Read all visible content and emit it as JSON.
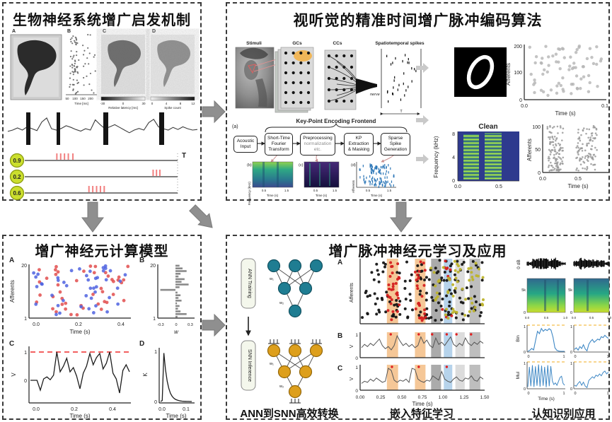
{
  "figure": {
    "bg": "#ffffff",
    "panel_border": "#3a3a3a",
    "big_arrow": "#8f8f8f",
    "small_arrow": "#c9c9c9"
  },
  "panels": {
    "bio": {
      "title": "生物神经系统增广启发机制",
      "fig_labels": {
        "a": "A",
        "b": "B",
        "c": "C",
        "d": "D"
      },
      "fig_b": {
        "xticks": [
          "50",
          "100",
          "150",
          "200"
        ],
        "xlabel": "Time [ms]"
      },
      "fig_c": {
        "ticks": [
          "-30",
          "0",
          "30"
        ],
        "label": "Relative latency [ms]"
      },
      "fig_d": {
        "ticks": [
          "0",
          "4",
          "8",
          "12"
        ],
        "label": "Spike count"
      },
      "ecg": {
        "color": "#3c3c3c",
        "values": [
          0.45,
          0.5,
          0.58,
          0.5,
          0.62,
          0.55,
          0.48,
          0.8,
          0.95,
          0.55,
          0.5,
          0.56,
          0.66,
          0.6,
          0.52,
          0.46,
          0.55,
          0.5,
          0.88,
          0.7,
          0.55,
          0.62,
          0.7,
          0.6,
          0.5,
          0.4,
          0.5,
          0.56,
          0.5,
          0.78,
          0.9,
          0.62,
          0.55,
          0.5,
          0.6,
          0.52,
          0.62,
          0.55,
          0.5,
          0.52
        ]
      },
      "circle_fill": "#cbdf2e",
      "circle_edge": "#8a9a10",
      "rate_rows": [
        {
          "value": "0.9",
          "ticks": {
            "color": "#f28080",
            "pos": [
              0.21,
              0.235,
              0.26,
              0.285,
              0.315
            ]
          }
        },
        {
          "value": "0.2",
          "ticks": {
            "color": "#f28080",
            "pos": [
              0.84,
              0.862,
              0.884
            ]
          }
        },
        {
          "value": "0.6",
          "ticks": {
            "color": "#f28080",
            "pos": [
              0.42,
              0.445,
              0.47,
              0.495,
              0.52
            ]
          }
        }
      ],
      "t_label": "T"
    },
    "encode": {
      "title": "视听觉的精准时间增广脉冲编码算法",
      "pipeline": {
        "stimuli": "Stimuli",
        "gcs": "GCs",
        "ccs": "CCs",
        "spatiotemporal": "Spatiotemporal spikes",
        "nerve": "nerve",
        "t_label": "T",
        "spike_points": {
          "n": 30,
          "seed": 17,
          "color": "#111111",
          "shape": "vbar"
        }
      },
      "frontend": {
        "a_label": "(a)",
        "title": "Key-Point Encoding Frontend",
        "box1": "Acoustic\nInput",
        "box2": "Short-Time\nFourier\nTransform",
        "box3_main": "Preprocessing",
        "box3_sub": "normalization\netc.",
        "box4": "KP\nExtraction\n& Masking",
        "box5": "Sparse\nSpike\nGeneration",
        "b_label": "(b)",
        "c_label": "(c)",
        "d_label": "(d)"
      }
    },
    "neuron": {
      "title": "增广神经元计算模型",
      "labels": {
        "a": "A",
        "b": "B",
        "c": "C",
        "d": "D"
      }
    },
    "learn": {
      "title": "增广脉冲神经元学习及应用",
      "ann_label": "ANN Training",
      "snn_label": "SNN Inference",
      "w1": "w₁",
      "w2": "w₂",
      "row_labels": {
        "a": "A",
        "b": "B",
        "c": "C"
      },
      "captions": {
        "convert": "ANN到SNN高效转换",
        "embed": "嵌入特征学习",
        "apply": "认知识别应用"
      }
    }
  },
  "chart_data": [
    {
      "id": "fish_spike_raster",
      "type": "scatter",
      "xlabel": "Time [ms]",
      "xticks": [
        "50",
        "100",
        "150",
        "200"
      ],
      "xlim": [
        0,
        250
      ],
      "seed": 11,
      "r": 1.1,
      "opacity": 0.9,
      "groups": [
        {
          "n": 55,
          "color": "#666666",
          "x0": 0.12,
          "x1": 0.42
        },
        {
          "n": 28,
          "color": "#666666",
          "x0": 0.3,
          "x1": 0.95
        }
      ]
    },
    {
      "id": "visual_spike_raster",
      "type": "scatter",
      "xlabel": "Time (s)",
      "ylabel": "Afferents",
      "xticks": [
        "0.0",
        "0.1"
      ],
      "yticks": [
        "0",
        "100",
        "200"
      ],
      "xlim": [
        0,
        0.1
      ],
      "ylim": [
        0,
        200
      ],
      "seed": 21,
      "r": 2.2,
      "opacity": 0.8,
      "groups": [
        {
          "n": 72,
          "color": "#b4b4b4"
        }
      ]
    },
    {
      "id": "clean_spectrogram",
      "type": "heatmap",
      "title": "Clean",
      "ylabel": "Frequency (kHz)",
      "yticks": [
        "0",
        "4",
        "8"
      ],
      "xticks": [
        "0.0",
        "0.5"
      ],
      "xlim": [
        0,
        0.75
      ],
      "ylim": [
        0,
        8
      ]
    },
    {
      "id": "clean_spike_raster",
      "type": "scatter",
      "xlabel": "Time (s)",
      "ylabel": "Afferents",
      "xticks": [
        "0.0",
        "0.5"
      ],
      "yticks": [
        "0",
        "50",
        "100"
      ],
      "ylim": [
        0,
        110
      ],
      "seed": 7,
      "r": 1.3,
      "opacity": 0.85,
      "groups": [
        {
          "n": 115,
          "color": "#9a9a9a",
          "x0": 0.05,
          "x1": 0.3
        },
        {
          "n": 105,
          "color": "#9a9a9a",
          "x0": 0.5,
          "x1": 0.82
        }
      ]
    },
    {
      "id": "stft_spectrogram",
      "type": "heatmap",
      "xlabel": "Time (s)",
      "xticks": [
        "0.5",
        "1.5"
      ],
      "ylabel": "Frequency (kHz)"
    },
    {
      "id": "preprocessed_spectrogram",
      "type": "heatmap",
      "xlabel": "Time (s)",
      "xticks": [
        "0.5",
        "1.5"
      ],
      "ylabel": "Frequency (kHz)"
    },
    {
      "id": "kp_sparse_spikes",
      "type": "scatter",
      "xlabel": "Time (s)",
      "ylabel": "Afferents",
      "xticks": [
        "0.5",
        "1.5"
      ],
      "seed": 13,
      "shape": "vbar",
      "opacity": 0.95,
      "groups": [
        {
          "n": 65,
          "color": "#2e78b8",
          "x0": 0.3,
          "x1": 0.8
        },
        {
          "n": 45,
          "color": "#2e78b8",
          "x0": 0.02,
          "x1": 0.98
        }
      ]
    },
    {
      "id": "augmented_neuron_raster",
      "type": "scatter",
      "xlabel": "Time (s)",
      "ylabel": "Afferents",
      "xticks": [
        "0.0",
        "0.2",
        "0.4"
      ],
      "yticks": [
        "1",
        "20"
      ],
      "xlim": [
        0,
        0.5
      ],
      "ylim": [
        1,
        20
      ],
      "seed": 5,
      "r": 2.4,
      "opacity": 0.85,
      "groups": [
        {
          "n": 45,
          "color": "#e24d4d"
        },
        {
          "n": 45,
          "color": "#4f63e0"
        }
      ]
    },
    {
      "id": "weights_histogram",
      "type": "bar",
      "orientation": "horizontal",
      "xlabel": "w",
      "xticks": [
        "-0.3",
        "0",
        "0.3"
      ],
      "yticks": [
        "1",
        "20"
      ],
      "xlim": [
        -0.35,
        0.35
      ],
      "color": "#8a8a8a",
      "values": [
        0.04,
        0.22,
        0.1,
        0.05,
        0.08,
        0.03,
        0.12,
        0.06,
        0.1,
        0.04,
        -0.3,
        0.08,
        0.26,
        0.12,
        0.18,
        0.06,
        0.1,
        0.22,
        0.14,
        0.08
      ]
    },
    {
      "id": "membrane_potential",
      "type": "line",
      "ylabel": "V",
      "yticks": [
        "0",
        "1"
      ],
      "xticks": [
        "0.0",
        "0.2",
        "0.4"
      ],
      "xlabel": "Time (s)",
      "threshold": 1,
      "threshold_color": "#f26060",
      "color": "#1c1c1c",
      "width": 1.3,
      "ylim": [
        -0.7,
        1.15
      ],
      "values": [
        0,
        0,
        0,
        -0.35,
        0.05,
        0.12,
        0.02,
        0.18,
        1,
        0.3,
        0.5,
        0.78,
        0.3,
        0.45,
        0.15,
        -0.3,
        0.25,
        0.5,
        0.95,
        0.55,
        0.8,
        0.95,
        0.4,
        0.6,
        1,
        0.25,
        0.05,
        -0.45,
        0.35,
        0.55,
        0.3
      ]
    },
    {
      "id": "spike_kernel",
      "type": "line",
      "ylabel": "K",
      "yticks": [
        "0",
        "1"
      ],
      "xticks": [
        "0.0",
        "0.1"
      ],
      "xlabel": "Time (s)",
      "color": "#1c1c1c",
      "width": 1.3,
      "ylim": [
        0,
        1.08
      ],
      "values": [
        0,
        0.02,
        1,
        0.66,
        0.42,
        0.27,
        0.17,
        0.11,
        0.07,
        0.045,
        0.03,
        0.02,
        0.012,
        0.008,
        0.005,
        0.003,
        0.002,
        0.001,
        0,
        0
      ]
    },
    {
      "id": "learning_raster",
      "type": "scatter",
      "ylabel": "Afferents",
      "xlim": [
        0,
        1.5
      ],
      "seed": 9,
      "r": 2,
      "opacity": 0.95,
      "bands": [
        {
          "f0": 0.215,
          "f1": 0.305,
          "color": "#f3bd85"
        },
        {
          "f0": 0.44,
          "f1": 0.525,
          "color": "#f3bd85"
        },
        {
          "f0": 0.57,
          "f1": 0.65,
          "color": "#9c9c9c"
        },
        {
          "f0": 0.672,
          "f1": 0.74,
          "color": "#a9cbe7"
        },
        {
          "f0": 0.765,
          "f1": 0.84,
          "color": "#d6d6d6"
        },
        {
          "f0": 0.878,
          "f1": 0.965,
          "color": "#b3b3b3"
        }
      ],
      "groups": [
        {
          "n": 150,
          "color": "#151515"
        },
        {
          "n": 30,
          "color": "#d42020",
          "x0": 0.21,
          "x1": 0.31
        },
        {
          "n": 26,
          "color": "#d42020",
          "x0": 0.43,
          "x1": 0.53
        },
        {
          "n": 10,
          "color": "#d42020",
          "x0": 0.66,
          "x1": 0.75
        },
        {
          "n": 55,
          "color": "#bdb32c",
          "x0": 0.55,
          "x1": 1
        }
      ]
    },
    {
      "id": "membrane_b",
      "type": "line",
      "ylabel": "V",
      "yticks": [
        "0",
        "1"
      ],
      "color": "#555555",
      "width": 1,
      "ylim": [
        0,
        1.05
      ],
      "spike_marks": [
        0.24,
        0.47,
        0.58,
        0.7,
        0.78,
        0.9
      ],
      "values": [
        0.4,
        0.55,
        0.45,
        0.6,
        0.5,
        0.65,
        0.8,
        0.5,
        0.35,
        0.45,
        0.3,
        0.5,
        0.95,
        0.7,
        0.5,
        0.6,
        0.45,
        0.55,
        0.4,
        0.5,
        0.9,
        0.6,
        0.75,
        0.5,
        0.4,
        0.85,
        0.55,
        0.65,
        0.5,
        0.7,
        0.9,
        0.55,
        0.45,
        0.6,
        0.5,
        0.85,
        0.6,
        0.5,
        0.65,
        0.55,
        0.7,
        0.6
      ]
    },
    {
      "id": "membrane_c",
      "type": "line",
      "ylabel": "V",
      "yticks": [
        "0",
        "1"
      ],
      "xticks": [
        "0.00",
        "0.25",
        "0.50",
        "0.75",
        "1.00",
        "1.25",
        "1.50"
      ],
      "xlabel": "Time (s)",
      "color": "#555555",
      "width": 1,
      "ylim": [
        0,
        1.05
      ],
      "spike_marks": [
        0.25,
        0.47,
        0.7
      ],
      "values": [
        0.25,
        0.35,
        0.3,
        0.45,
        0.35,
        0.5,
        0.4,
        0.3,
        0.35,
        0.95,
        0.85,
        0.4,
        0.3,
        0.4,
        0.35,
        0.45,
        0.3,
        0.95,
        0.9,
        0.45,
        0.35,
        0.3,
        0.4,
        0.35,
        0.6,
        0.5,
        0.4,
        0.8,
        0.45,
        0.35,
        0.3,
        0.45,
        0.55,
        0.4,
        0.35,
        0.5,
        0.45,
        0.6,
        0.4,
        0.35,
        0.55,
        0.45
      ]
    },
    {
      "id": "waveform_left",
      "type": "waveform",
      "ylabel": "0 dB",
      "seed": 31,
      "n": 48,
      "color": "#0a0a0a",
      "env": [
        0.35,
        0.8,
        1,
        0.9,
        0.85,
        0.95,
        0.6,
        0.3
      ]
    },
    {
      "id": "waveform_right",
      "type": "waveform",
      "seed": 32,
      "n": 44,
      "color": "#0a0a0a",
      "env": [
        0.5,
        1,
        0.95,
        0.8,
        0.7,
        0.6,
        0.55,
        0.4
      ]
    },
    {
      "id": "spectrogram_left",
      "type": "heatmap",
      "yticks": [
        "0",
        "5k"
      ],
      "xticks": [
        "0.0",
        "0.5",
        "1.0"
      ]
    },
    {
      "id": "spectrogram_right",
      "type": "heatmap",
      "yticks": [
        "0",
        "5k"
      ],
      "xticks": [
        "0.0",
        "0.5",
        "1.0"
      ]
    },
    {
      "id": "bin_response_left",
      "type": "line",
      "ylabel": "Bin",
      "yticks": [
        "0",
        "1"
      ],
      "xticks": [
        "0",
        "1"
      ],
      "threshold": 1,
      "color": "#3f88c5",
      "width": 1.1,
      "ylim": [
        0,
        1.05
      ],
      "values": [
        0,
        0.04,
        0.12,
        0.06,
        0.45,
        0.85,
        0.75,
        0.97,
        0.85,
        0.93,
        0.88,
        0.96,
        0.9,
        0.6,
        0.15,
        0.04,
        0.01,
        0,
        0,
        0
      ]
    },
    {
      "id": "bin_response_right",
      "type": "line",
      "yticks": [
        "0",
        "1"
      ],
      "xticks": [
        "0",
        "1"
      ],
      "threshold": 1,
      "color": "#3f88c5",
      "width": 1.1,
      "ylim": [
        0,
        1.05
      ],
      "values": [
        0.08,
        0.15,
        0.05,
        0.2,
        0.12,
        0.28,
        0.1,
        0.02,
        0.3,
        0.42,
        0.5,
        0.38,
        0.45,
        0.52,
        0.48,
        0.62,
        0.58,
        0.68,
        0.6,
        0.55
      ]
    },
    {
      "id": "mul_response_left",
      "type": "line",
      "ylabel": "Mul",
      "yticks": [
        "0",
        "1"
      ],
      "xticks": [
        "0",
        "1"
      ],
      "xlabel": "Time (s)",
      "threshold": 1,
      "color": "#3f88c5",
      "width": 1,
      "ylim": [
        0,
        1.05
      ],
      "values": [
        0.05,
        0.9,
        0.08,
        0.97,
        0.05,
        0.92,
        0.1,
        1,
        0.06,
        0.95,
        0.1,
        0.9,
        0.04,
        0.97,
        0.08,
        0.93,
        0.3,
        0.15,
        0.22,
        0.12,
        0.28,
        0.45,
        0.5,
        0.2,
        0.12
      ]
    },
    {
      "id": "mul_response_right",
      "type": "line",
      "yticks": [
        "0",
        "1"
      ],
      "xticks": [
        "0",
        "1"
      ],
      "threshold": 1,
      "color": "#3f88c5",
      "width": 1,
      "ylim": [
        0,
        1.05
      ],
      "values": [
        0.12,
        0.08,
        0.2,
        0.28,
        0.12,
        0.25,
        0.08,
        0.02,
        0.32,
        0.4,
        0.48,
        0.42,
        0.55,
        0.5,
        0.6,
        0.52,
        0.66,
        0.72,
        0.6,
        0.68
      ]
    }
  ]
}
